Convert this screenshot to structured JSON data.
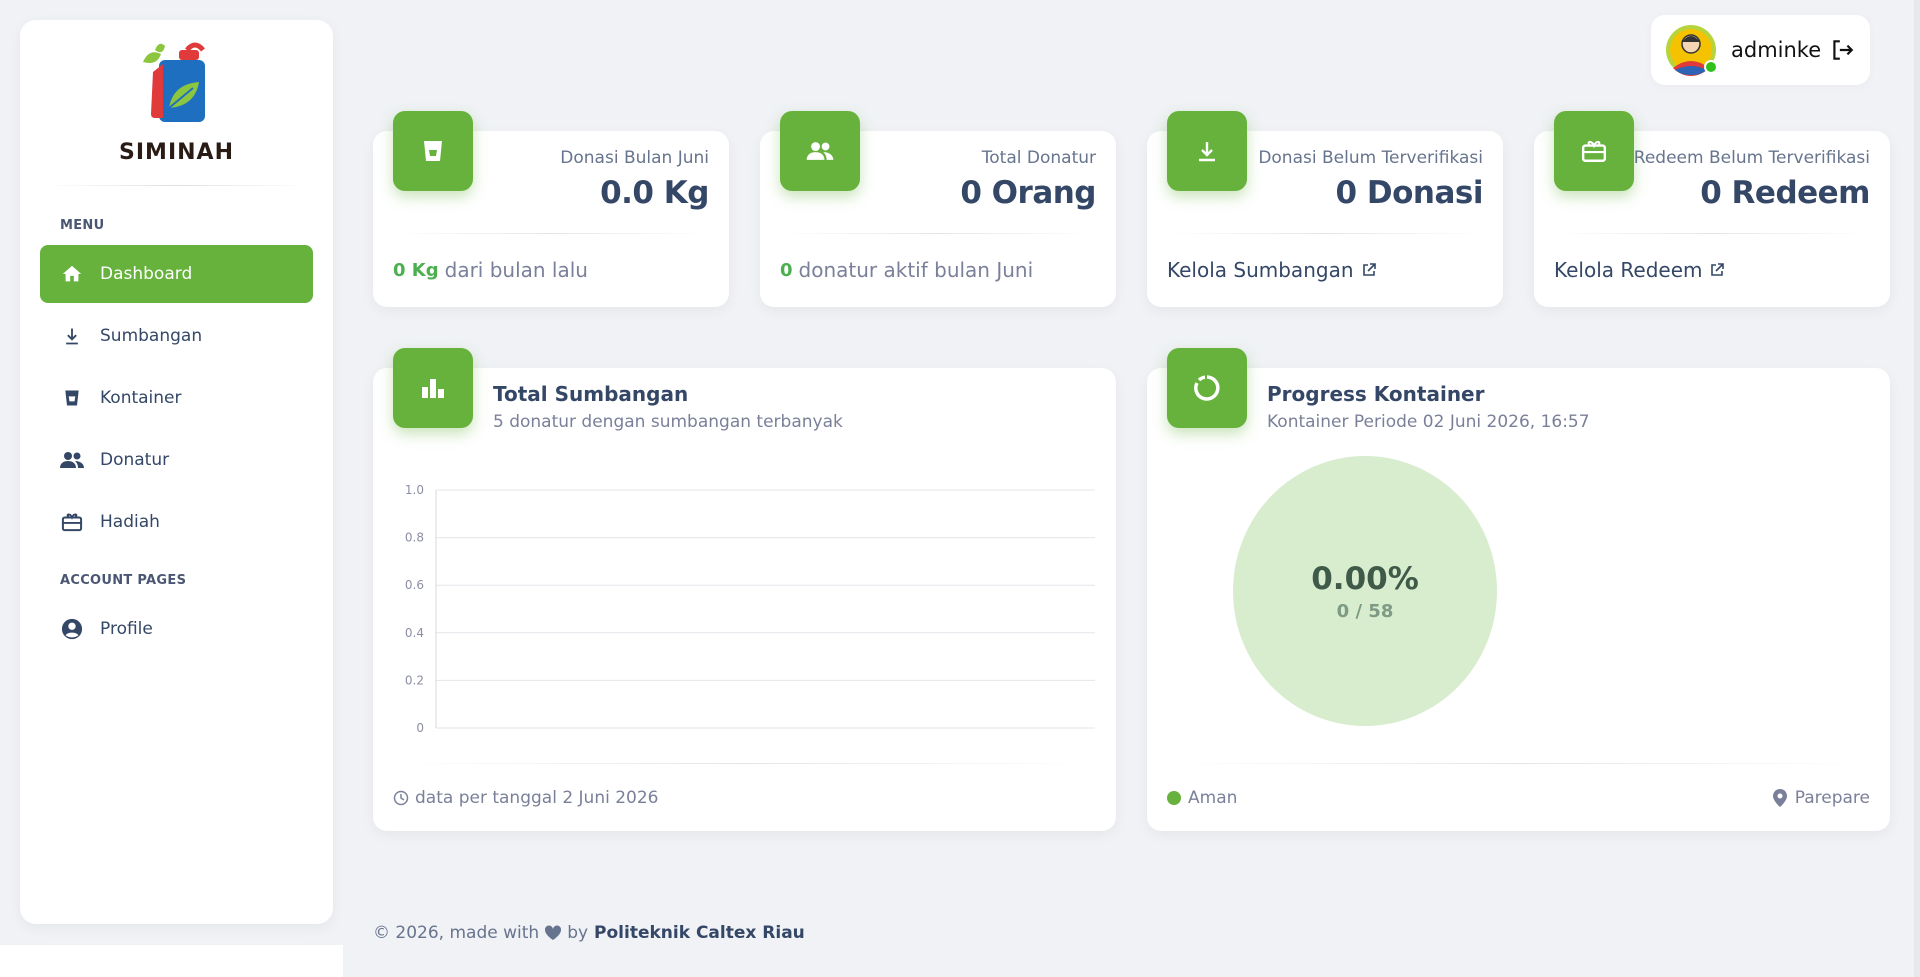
{
  "brand": {
    "name": "SIMINAH",
    "logo_icon": "jerrycan-leaf-logo"
  },
  "sidebar": {
    "menu_heading": "MENU",
    "items": [
      {
        "label": "Dashboard",
        "icon": "home-icon",
        "active": true
      },
      {
        "label": "Sumbangan",
        "icon": "download-icon",
        "active": false
      },
      {
        "label": "Kontainer",
        "icon": "container-icon",
        "active": false
      },
      {
        "label": "Donatur",
        "icon": "people-icon",
        "active": false
      },
      {
        "label": "Hadiah",
        "icon": "gift-icon",
        "active": false
      }
    ],
    "account_heading": "ACCOUNT PAGES",
    "account_items": [
      {
        "label": "Profile",
        "icon": "user-circle-icon"
      }
    ]
  },
  "user": {
    "name": "adminke",
    "status": "online"
  },
  "stats": [
    {
      "title": "Donasi Bulan Juni",
      "value": "0.0 Kg",
      "footer_highlight": "0 Kg",
      "footer_text": "dari bulan lalu",
      "icon": "container-icon"
    },
    {
      "title": "Total Donatur",
      "value": "0 Orang",
      "footer_highlight": "0",
      "footer_text": "donatur aktif bulan Juni",
      "icon": "people-icon"
    },
    {
      "title": "Donasi Belum Terverifikasi",
      "value": "0 Donasi",
      "footer_link": "Kelola Sumbangan",
      "icon": "download-icon"
    },
    {
      "title": "Redeem Belum Terverifikasi",
      "value": "0 Redeem",
      "footer_link": "Kelola Redeem",
      "icon": "gift-icon"
    }
  ],
  "sumbangan_card": {
    "title": "Total Sumbangan",
    "subtitle": "5 donatur dengan sumbangan terbanyak",
    "footer": "data per tanggal 2 Juni 2026"
  },
  "chart_data": {
    "type": "bar",
    "title": "",
    "xlabel": "",
    "ylabel": "",
    "categories": [],
    "values": [],
    "ylim": [
      0,
      1.0
    ],
    "yticks": [
      "1.0",
      "0.8",
      "0.6",
      "0.4",
      "0.2",
      "0"
    ],
    "grid": true
  },
  "kontainer_card": {
    "title": "Progress Kontainer",
    "subtitle": "Kontainer Periode 02 Juni 2026, 16:57",
    "percent_label": "0.00%",
    "count_label": "0 / 58",
    "progress_fraction": 0.0,
    "status": "Aman",
    "status_color": "#66b23c",
    "location": "Parepare"
  },
  "colors": {
    "accent": "#66b23c",
    "text": "#344767",
    "muted": "#7b809a"
  },
  "footer": {
    "copyright": "© 2026, made with",
    "by": "by",
    "org": "Politeknik Caltex Riau"
  }
}
